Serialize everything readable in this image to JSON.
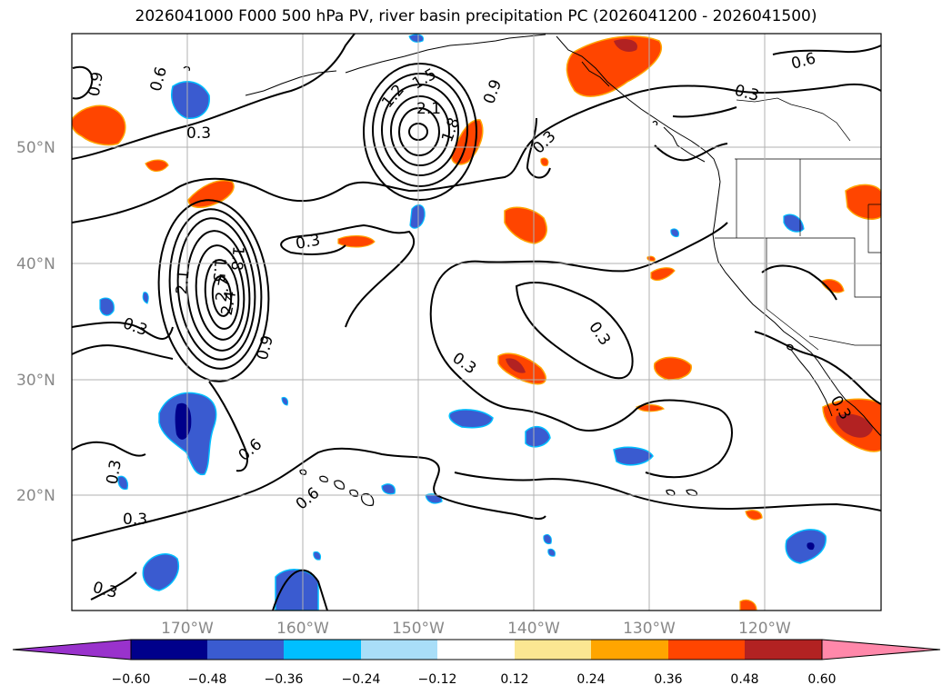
{
  "title": "2026041000 F000 500 hPa PV, river basin precipitation PC (2026041200 - 2026041500)",
  "lat_labels": [
    "50°N",
    "40°N",
    "30°N",
    "20°N"
  ],
  "lon_labels": [
    "170°W",
    "160°W",
    "150°W",
    "140°W",
    "130°W",
    "120°W"
  ],
  "contour_labels": [
    "0.9",
    "0.6",
    "0.3",
    "1.2",
    "1.5",
    "2.1",
    "1.8",
    "0.9",
    "0.3",
    "0.6",
    "0.3",
    "0.3",
    "0.3",
    "0.3",
    "1.8",
    "2.1",
    "1.5",
    "2.4",
    "2.7",
    "0.9",
    "0.6",
    "0.3",
    "0.6",
    "0.3",
    "0.3",
    "0.3",
    "0.3"
  ],
  "colorbar": {
    "ticks": [
      "−0.60",
      "−0.48",
      "−0.36",
      "−0.24",
      "−0.12",
      "0.12",
      "0.24",
      "0.36",
      "0.48",
      "0.60"
    ],
    "colors": [
      "#9932cc",
      "#00008b",
      "#3a5bd0",
      "#00bfff",
      "#a9def8",
      "#ffffff",
      "#fbe792",
      "#ffa500",
      "#ff4500",
      "#b22222",
      "#ff88aa"
    ]
  }
}
